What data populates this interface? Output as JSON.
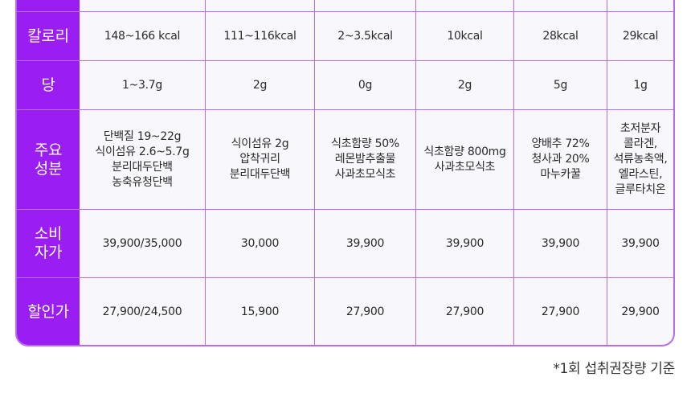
{
  "colors": {
    "header_bg": "#9a1ef2",
    "grid_line": "#b56cf3",
    "cell_bg": "#f8f7fc"
  },
  "rows": [
    {
      "label": "칼로리",
      "cells": [
        "148~166 kcal",
        "111~116kcal",
        "2~3.5kcal",
        "10kcal",
        "28kcal",
        "29kcal"
      ]
    },
    {
      "label": "당",
      "cells": [
        "1~3.7g",
        "2g",
        "0g",
        "2g",
        "5g",
        "1g"
      ]
    },
    {
      "label": "주요\n성분",
      "cells": [
        "단백질 19~22g\n식이섬유 2.6~5.7g\n분리대두단백\n농축유청단백",
        "식이섬유 2g\n압착귀리\n분리대두단백",
        "식초함량 50%\n레몬밤추출물\n사과초모식초",
        "식초함량 800mg\n사과초모식초",
        "양배추 72%\n청사과 20%\n마누카꿀",
        "초저분자\n콜라겐,\n석류농축액,\n엘라스틴,\n글루타치온"
      ]
    },
    {
      "label": "소비\n자가",
      "cells": [
        "39,900/35,000",
        "30,000",
        "39,900",
        "39,900",
        "39,900",
        "39,900"
      ]
    },
    {
      "label": "할인가",
      "cells": [
        "27,900/24,500",
        "15,900",
        "27,900",
        "27,900",
        "27,900",
        "29,900"
      ]
    }
  ],
  "footnote": "*1회 섭취권장량 기준"
}
